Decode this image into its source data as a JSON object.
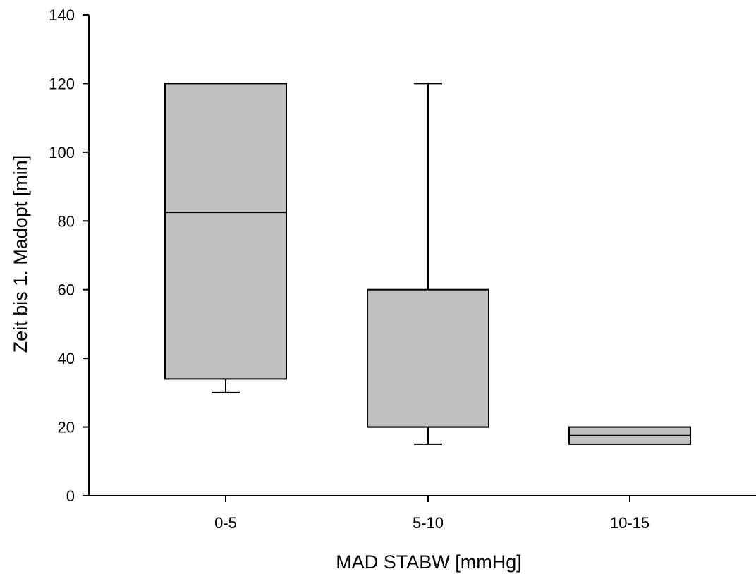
{
  "chart_data": {
    "type": "box",
    "title": "",
    "xlabel": "MAD STABW [mmHg]",
    "ylabel": "Zeit bis 1. Madopt [min]",
    "ylim": [
      0,
      140
    ],
    "yticks": [
      "0",
      "20",
      "40",
      "60",
      "80",
      "100",
      "120",
      "140"
    ],
    "grid": false,
    "categories": [
      "0-5",
      "5-10",
      "10-15"
    ],
    "boxes": [
      {
        "category": "0-5",
        "whisker_low": 30,
        "q1": 34,
        "median": 82.5,
        "q3": 120,
        "whisker_high": 120
      },
      {
        "category": "5-10",
        "whisker_low": 15,
        "q1": 20,
        "median": 20,
        "q3": 60,
        "whisker_high": 120
      },
      {
        "category": "10-15",
        "whisker_low": 15,
        "q1": 15,
        "median": 17.5,
        "q3": 20,
        "whisker_high": 20
      }
    ],
    "colors": {
      "box_fill": "#c0c0c0",
      "stroke": "#000000"
    }
  }
}
